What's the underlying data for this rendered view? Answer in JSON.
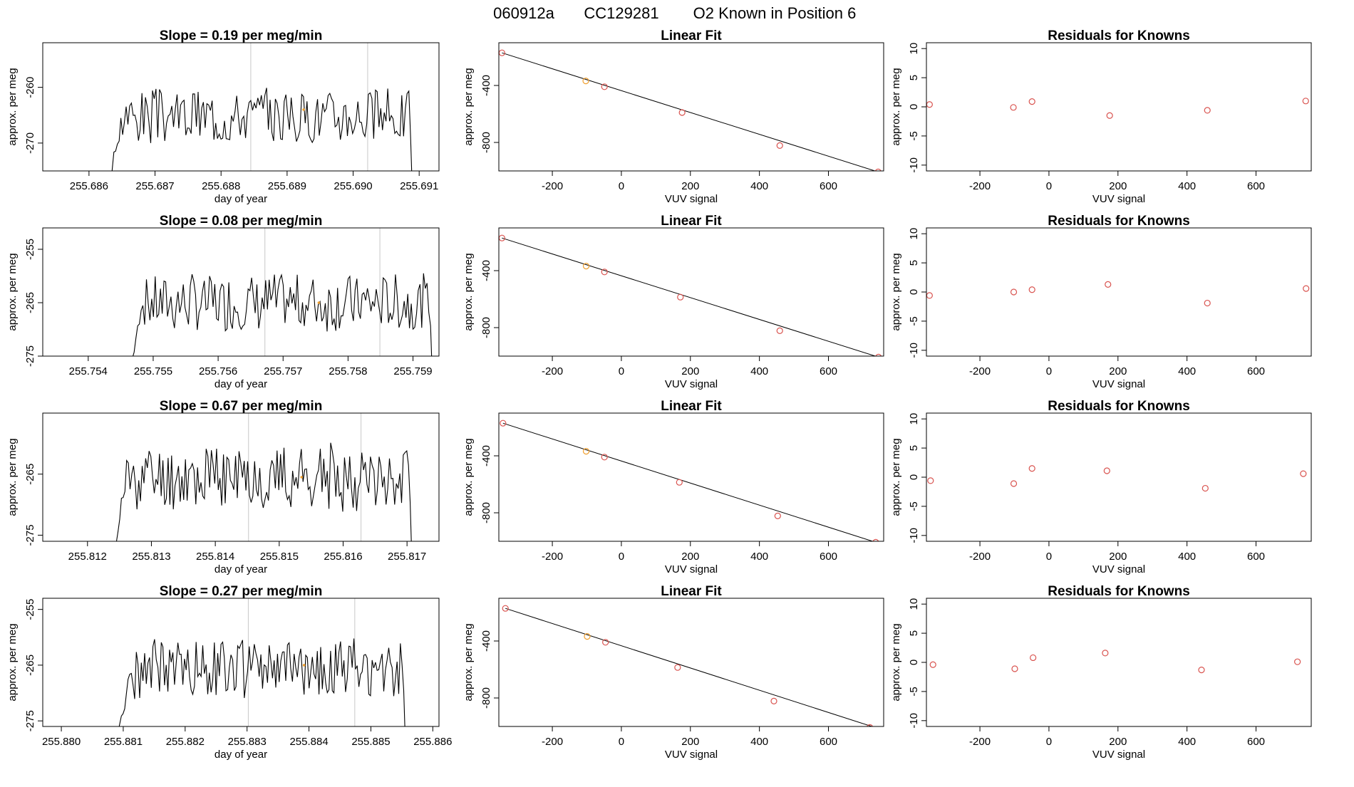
{
  "header": {
    "run_id": "060912a",
    "tank_id": "CC129281",
    "description": "O2 Known in Position  6"
  },
  "chart_data": [
    {
      "type": "line",
      "panel": "time-series",
      "title": "Slope =  0.19  per meg/min",
      "xlabel": "day of year",
      "ylabel": "approx. per meg",
      "xlim": [
        255.6853,
        255.6913
      ],
      "ylim": [
        -275,
        -252
      ],
      "xticks": [
        "255.686",
        "255.687",
        "255.688",
        "255.689",
        "255.690",
        "255.691"
      ],
      "yticks": [
        "-260",
        "-270"
      ],
      "ytick_values": [
        -260,
        -270
      ],
      "vlines": [
        255.68845,
        255.69022
      ],
      "start": 255.68635,
      "end": 255.69087,
      "level": -265.0,
      "amp": 3.5,
      "seed": 3,
      "highlight_point": {
        "x": 255.68925,
        "y": -264.0
      }
    },
    {
      "type": "scatter",
      "panel": "linear-fit",
      "title": "Linear Fit",
      "xlabel": "VUV signal",
      "ylabel": "approx. per meg",
      "xlim": [
        -355,
        760
      ],
      "ylim": [
        -1000,
        -100
      ],
      "xticks": [
        "-200",
        "0",
        "200",
        "400",
        "600"
      ],
      "yticks": [
        "-400",
        "-800"
      ],
      "ytick_values": [
        -400,
        -800
      ],
      "x": [
        -346,
        -103,
        -49,
        176,
        459,
        744
      ],
      "y": [
        -171,
        -368,
        -409,
        -590,
        -822,
        -1007
      ],
      "highlight_index": 1,
      "fit_line": {
        "x": [
          -346,
          744
        ],
        "y": [
          -171,
          -1007
        ]
      }
    },
    {
      "type": "scatter",
      "panel": "residuals",
      "title": "Residuals for Knowns",
      "xlabel": "VUV signal",
      "ylabel": "approx. per meg",
      "xlim": [
        -355,
        760
      ],
      "ylim": [
        -11,
        11
      ],
      "xticks": [
        "-200",
        "0",
        "200",
        "400",
        "600"
      ],
      "yticks": [
        "10",
        "5",
        "0",
        "-5",
        "-10"
      ],
      "ytick_values": [
        10,
        5,
        0,
        -5,
        -10
      ],
      "x": [
        -346,
        -103,
        -49,
        176,
        459,
        744
      ],
      "y": [
        0.4,
        -0.1,
        0.9,
        -1.5,
        -0.6,
        1.0
      ]
    },
    {
      "type": "line",
      "panel": "time-series",
      "title": "Slope =  0.08  per meg/min",
      "xlabel": "day of year",
      "ylabel": "approx. per meg",
      "xlim": [
        255.7533,
        255.7594
      ],
      "ylim": [
        -275,
        -251
      ],
      "xticks": [
        "255.754",
        "255.755",
        "255.756",
        "255.757",
        "255.758",
        "255.759"
      ],
      "yticks": [
        "-255",
        "-265",
        "-275"
      ],
      "ytick_values": [
        -255,
        -265,
        -275
      ],
      "vlines": [
        255.75672,
        255.75849
      ],
      "start": 255.75468,
      "end": 255.75927,
      "level": -265.0,
      "amp": 3.8,
      "seed": 7,
      "highlight_point": {
        "x": 255.75755,
        "y": -265.0
      }
    },
    {
      "type": "scatter",
      "panel": "linear-fit",
      "title": "Linear Fit",
      "xlabel": "VUV signal",
      "ylabel": "approx. per meg",
      "xlim": [
        -355,
        760
      ],
      "ylim": [
        -1000,
        -100
      ],
      "xticks": [
        "-200",
        "0",
        "200",
        "400",
        "600"
      ],
      "yticks": [
        "-400",
        "-800"
      ],
      "ytick_values": [
        -400,
        -800
      ],
      "x": [
        -346,
        -102,
        -49,
        171,
        459,
        745
      ],
      "y": [
        -171,
        -368,
        -409,
        -586,
        -822,
        -1007
      ],
      "highlight_index": 1,
      "fit_line": {
        "x": [
          -346,
          745
        ],
        "y": [
          -171,
          -1007
        ]
      }
    },
    {
      "type": "scatter",
      "panel": "residuals",
      "title": "Residuals for Knowns",
      "xlabel": "VUV signal",
      "ylabel": "approx. per meg",
      "xlim": [
        -355,
        760
      ],
      "ylim": [
        -11,
        11
      ],
      "xticks": [
        "-200",
        "0",
        "200",
        "400",
        "600"
      ],
      "yticks": [
        "10",
        "5",
        "0",
        "-5",
        "-10"
      ],
      "ytick_values": [
        10,
        5,
        0,
        -5,
        -10
      ],
      "x": [
        -346,
        -102,
        -49,
        171,
        459,
        745
      ],
      "y": [
        -0.6,
        0.0,
        0.4,
        1.3,
        -1.9,
        0.6
      ]
    },
    {
      "type": "line",
      "panel": "time-series",
      "title": "Slope =  0.67  per meg/min",
      "xlabel": "day of year",
      "ylabel": "approx. per meg",
      "xlim": [
        255.8113,
        255.8175
      ],
      "ylim": [
        -276,
        -255
      ],
      "xticks": [
        "255.812",
        "255.813",
        "255.814",
        "255.815",
        "255.816",
        "255.817"
      ],
      "yticks": [
        "-265",
        "-275"
      ],
      "ytick_values": [
        -265,
        -275
      ],
      "vlines": [
        255.81452,
        255.81628
      ],
      "start": 255.81245,
      "end": 255.81705,
      "level": -265.5,
      "amp": 3.8,
      "seed": 11,
      "highlight_point": {
        "x": 255.81535,
        "y": -265.5
      }
    },
    {
      "type": "scatter",
      "panel": "linear-fit",
      "title": "Linear Fit",
      "xlabel": "VUV signal",
      "ylabel": "approx. per meg",
      "xlim": [
        -355,
        760
      ],
      "ylim": [
        -1000,
        -100
      ],
      "xticks": [
        "-200",
        "0",
        "200",
        "400",
        "600"
      ],
      "yticks": [
        "-400",
        "-800"
      ],
      "ytick_values": [
        -400,
        -800
      ],
      "x": [
        -343,
        -102,
        -49,
        168,
        453,
        737
      ],
      "y": [
        -171,
        -368,
        -409,
        -586,
        -822,
        -1007
      ],
      "highlight_index": 1,
      "fit_line": {
        "x": [
          -343,
          737
        ],
        "y": [
          -171,
          -1007
        ]
      }
    },
    {
      "type": "scatter",
      "panel": "residuals",
      "title": "Residuals for Knowns",
      "xlabel": "VUV signal",
      "ylabel": "approx. per meg",
      "xlim": [
        -355,
        760
      ],
      "ylim": [
        -11,
        11
      ],
      "xticks": [
        "-200",
        "0",
        "200",
        "400",
        "600"
      ],
      "yticks": [
        "10",
        "5",
        "0",
        "-5",
        "-10"
      ],
      "ytick_values": [
        10,
        5,
        0,
        -5,
        -10
      ],
      "x": [
        -343,
        -102,
        -49,
        168,
        453,
        737
      ],
      "y": [
        -0.6,
        -1.1,
        1.5,
        1.1,
        -1.9,
        0.6
      ]
    },
    {
      "type": "line",
      "panel": "time-series",
      "title": "Slope =  0.27  per meg/min",
      "xlabel": "day of year",
      "ylabel": "approx. per meg",
      "xlim": [
        255.8797,
        255.8861
      ],
      "ylim": [
        -276,
        -253
      ],
      "xticks": [
        "255.880",
        "255.881",
        "255.882",
        "255.883",
        "255.884",
        "255.885",
        "255.886"
      ],
      "yticks": [
        "-255",
        "-265",
        "-275"
      ],
      "ytick_values": [
        -255,
        -265,
        -275
      ],
      "vlines": [
        255.88302,
        255.88474
      ],
      "start": 255.88097,
      "end": 255.88553,
      "level": -265.5,
      "amp": 3.8,
      "seed": 19,
      "highlight_point": {
        "x": 255.88392,
        "y": -265.0
      }
    },
    {
      "type": "scatter",
      "panel": "linear-fit",
      "title": "Linear Fit",
      "xlabel": "VUV signal",
      "ylabel": "approx. per meg",
      "xlim": [
        -355,
        760
      ],
      "ylim": [
        -1000,
        -100
      ],
      "xticks": [
        "-200",
        "0",
        "200",
        "400",
        "600"
      ],
      "yticks": [
        "-400",
        "-800"
      ],
      "ytick_values": [
        -400,
        -800
      ],
      "x": [
        -336,
        -99,
        -46,
        163,
        442,
        720
      ],
      "y": [
        -171,
        -368,
        -409,
        -586,
        -822,
        -1007
      ],
      "highlight_index": 1,
      "fit_line": {
        "x": [
          -336,
          745
        ],
        "y": [
          -171,
          -1015
        ]
      }
    },
    {
      "type": "scatter",
      "panel": "residuals",
      "title": "Residuals for Knowns",
      "xlabel": "VUV signal",
      "ylabel": "approx. per meg",
      "xlim": [
        -355,
        760
      ],
      "ylim": [
        -11,
        11
      ],
      "xticks": [
        "-200",
        "0",
        "200",
        "400",
        "600"
      ],
      "yticks": [
        "10",
        "5",
        "0",
        "-5",
        "-10"
      ],
      "ytick_values": [
        10,
        5,
        0,
        -5,
        -10
      ],
      "x": [
        -336,
        -99,
        -46,
        163,
        442,
        720
      ],
      "y": [
        -0.4,
        -1.1,
        0.8,
        1.6,
        -1.3,
        0.1
      ]
    }
  ],
  "colors": {
    "line": "#000000",
    "point": "#d9534f",
    "highlight": "#f0a030",
    "vline": "#c8c8c8",
    "axis": "#000000"
  }
}
